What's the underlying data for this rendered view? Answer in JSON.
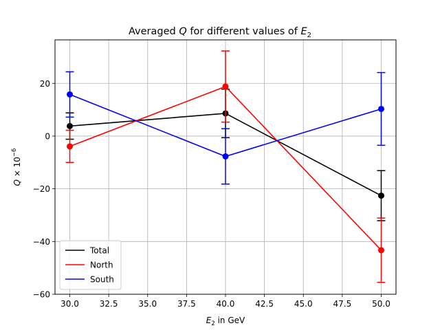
{
  "chart_data": {
    "type": "line",
    "title_prefix": "Averaged ",
    "title_var": "Q",
    "title_middle": " for different values of ",
    "title_sym": "E",
    "title_sub": "2",
    "xlabel_sym": "E",
    "xlabel_sub": "2",
    "xlabel_rest": " in GeV",
    "ylabel_sym": "Q",
    "ylabel_times": " × 10",
    "ylabel_exp": "−6",
    "xlim": [
      29.05,
      50.95
    ],
    "ylim": [
      -60,
      36.5
    ],
    "xticks": [
      30.0,
      32.5,
      35.0,
      37.5,
      40.0,
      42.5,
      45.0,
      47.5,
      50.0
    ],
    "xtick_labels": [
      "30.0",
      "32.5",
      "35.0",
      "37.5",
      "40.0",
      "42.5",
      "45.0",
      "47.5",
      "50.0"
    ],
    "yticks": [
      -60,
      -40,
      -20,
      0,
      20
    ],
    "ytick_labels": [
      "−60",
      "−40",
      "−20",
      "0",
      "20"
    ],
    "grid": true,
    "legend_position": "lower-left",
    "x": [
      30,
      40,
      50
    ],
    "series": [
      {
        "name": "Total",
        "color": "#000000",
        "values": [
          3.8,
          8.6,
          -22.6
        ],
        "errors": [
          5.0,
          9.2,
          9.5
        ]
      },
      {
        "name": "North",
        "color": "#ff0000",
        "values": [
          -3.9,
          18.8,
          -43.3
        ],
        "errors": [
          6.1,
          13.5,
          12.2
        ]
      },
      {
        "name": "South",
        "color": "#0000ff",
        "values": [
          15.8,
          -7.7,
          10.3
        ],
        "errors": [
          8.6,
          10.5,
          13.8
        ]
      }
    ]
  }
}
